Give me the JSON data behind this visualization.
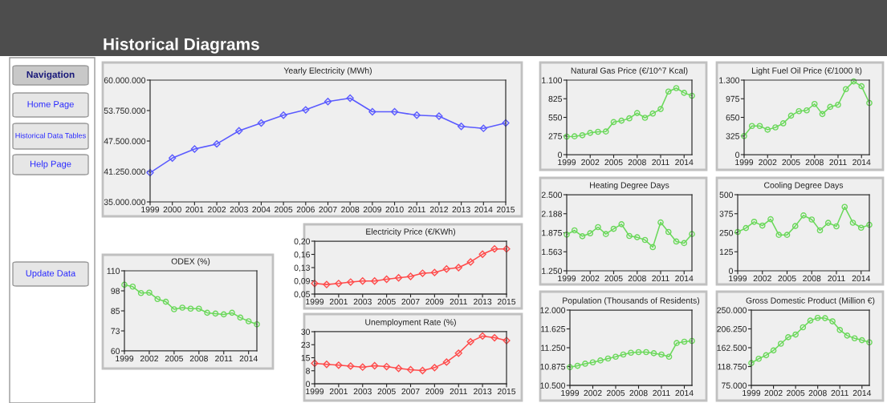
{
  "chart_data": [
    {
      "type": "other",
      "title": "Historical Diagrams",
      "annotations": [
        "Navigation",
        "Home Page",
        "Historical Data Tables",
        "Help Page",
        "Update Data"
      ]
    },
    {
      "type": "line",
      "title": "Yearly Electricity (MWh)",
      "x": [
        1999,
        2000,
        2001,
        2002,
        2003,
        2004,
        2005,
        2006,
        2007,
        2008,
        2009,
        2010,
        2011,
        2012,
        2013,
        2014,
        2015
      ],
      "color": "#5a5aff",
      "marker": "diamond",
      "values": [
        41000000,
        44000000,
        45850000,
        46900000,
        49600000,
        51200000,
        52800000,
        53900000,
        55600000,
        56300000,
        53500000,
        53500000,
        52800000,
        52600000,
        50500000,
        50100000,
        51200000
      ],
      "xlim": [
        1999,
        2015
      ],
      "xticks": [
        1999,
        2000,
        2001,
        2002,
        2003,
        2004,
        2005,
        2006,
        2007,
        2008,
        2009,
        2010,
        2011,
        2012,
        2013,
        2014,
        2015
      ],
      "ylim": [
        35000000,
        60000000
      ],
      "yticks": [
        {
          "value": 35000000,
          "label": "35.000.000"
        },
        {
          "value": 41250000,
          "label": "41.250.000"
        },
        {
          "value": 47500000,
          "label": "47.500.000"
        },
        {
          "value": 53750000,
          "label": "53.750.000"
        },
        {
          "value": 60000000,
          "label": "60.000.000"
        }
      ]
    },
    {
      "type": "line",
      "title": "ODEX (%)",
      "x": [
        1999,
        2000,
        2001,
        2002,
        2003,
        2004,
        2005,
        2006,
        2007,
        2008,
        2009,
        2010,
        2011,
        2012,
        2013,
        2014,
        2015
      ],
      "color": "#6ad85a",
      "marker": "circle",
      "values": [
        101.3,
        100.1,
        96.1,
        96.4,
        92.4,
        90.7,
        86.0,
        87.0,
        86.4,
        86.4,
        83.8,
        83.3,
        82.8,
        83.8,
        80.8,
        78.5,
        76.6
      ],
      "xlim": [
        1999,
        2015
      ],
      "xticks": [
        1999,
        2002,
        2005,
        2008,
        2011,
        2014
      ],
      "ylim": [
        60,
        110
      ],
      "yticks": [
        60,
        {
          "value": 72.5,
          "label": "73"
        },
        85,
        {
          "value": 97.5,
          "label": "98"
        },
        110
      ]
    },
    {
      "type": "line",
      "title": "Electricity Price (€/KWh)",
      "x": [
        1999,
        2000,
        2001,
        2002,
        2003,
        2004,
        2005,
        2006,
        2007,
        2008,
        2009,
        2010,
        2011,
        2012,
        2013,
        2014,
        2015
      ],
      "color": "#ff4a4a",
      "marker": "diamond",
      "values": [
        0.08,
        0.077,
        0.08,
        0.084,
        0.087,
        0.087,
        0.092,
        0.096,
        0.1,
        0.109,
        0.111,
        0.121,
        0.125,
        0.141,
        0.163,
        0.178,
        0.178
      ],
      "xlim": [
        1999,
        2015
      ],
      "xticks": [
        1999,
        2001,
        2003,
        2005,
        2007,
        2009,
        2011,
        2013,
        2015
      ],
      "ylim": [
        0.05,
        0.2
      ],
      "yticks": [
        {
          "value": 0.05,
          "label": "0,05"
        },
        {
          "value": 0.0875,
          "label": "0,09"
        },
        {
          "value": 0.125,
          "label": "0,13"
        },
        {
          "value": 0.1625,
          "label": "0,16"
        },
        {
          "value": 0.2,
          "label": "0,20"
        }
      ]
    },
    {
      "type": "line",
      "title": "Unemployment Rate (%)",
      "x": [
        1999,
        2000,
        2001,
        2002,
        2003,
        2004,
        2005,
        2006,
        2007,
        2008,
        2009,
        2010,
        2011,
        2012,
        2013,
        2014,
        2015
      ],
      "color": "#ff4a4a",
      "marker": "diamond",
      "values": [
        11.8,
        11.2,
        10.7,
        10.2,
        9.6,
        10.4,
        9.9,
        8.9,
        8.1,
        7.6,
        9.3,
        12.5,
        17.6,
        24.2,
        27.5,
        26.5,
        24.9
      ],
      "xlim": [
        1999,
        2015
      ],
      "xticks": [
        1999,
        2001,
        2003,
        2005,
        2007,
        2009,
        2011,
        2013,
        2015
      ],
      "ylim": [
        0,
        30
      ],
      "yticks": [
        0,
        {
          "value": 7.5,
          "label": "8"
        },
        15,
        {
          "value": 22.5,
          "label": "23"
        },
        30
      ]
    },
    {
      "type": "line",
      "title": "Natural Gas Price (€/10^7 Kcal)",
      "x": [
        1999,
        2000,
        2001,
        2002,
        2003,
        2004,
        2005,
        2006,
        2007,
        2008,
        2009,
        2010,
        2011,
        2012,
        2013,
        2014,
        2015
      ],
      "color": "#6ad85a",
      "marker": "circle",
      "values": [
        266,
        270,
        286,
        321,
        337,
        341,
        481,
        501,
        536,
        614,
        544,
        607,
        673,
        932,
        982,
        912,
        869
      ],
      "xlim": [
        1999,
        2015
      ],
      "xticks": [
        1999,
        2002,
        2005,
        2008,
        2011,
        2014
      ],
      "ylim": [
        0,
        1100
      ],
      "yticks": [
        0,
        275,
        550,
        825,
        {
          "value": 1100,
          "label": "1.100"
        }
      ]
    },
    {
      "type": "line",
      "title": "Light Fuel Oil Price (€/1000 lt)",
      "x": [
        1999,
        2000,
        2001,
        2002,
        2003,
        2004,
        2005,
        2006,
        2007,
        2008,
        2009,
        2010,
        2011,
        2012,
        2013,
        2014,
        2015
      ],
      "color": "#6ad85a",
      "marker": "circle",
      "values": [
        324,
        500,
        500,
        435,
        476,
        546,
        680,
        759,
        772,
        884,
        708,
        833,
        870,
        1142,
        1277,
        1193,
        902
      ],
      "xlim": [
        1999,
        2015
      ],
      "xticks": [
        1999,
        2002,
        2005,
        2008,
        2011,
        2014
      ],
      "ylim": [
        0,
        1300
      ],
      "yticks": [
        0,
        325,
        650,
        975,
        {
          "value": 1300,
          "label": "1.300"
        }
      ]
    },
    {
      "type": "line",
      "title": "Heating Degree Days",
      "x": [
        1999,
        2000,
        2001,
        2002,
        2003,
        2004,
        2005,
        2006,
        2007,
        2008,
        2009,
        2010,
        2011,
        2012,
        2013,
        2014,
        2015
      ],
      "color": "#6ad85a",
      "marker": "circle",
      "values": [
        1844,
        1914,
        1818,
        1866,
        1967,
        1853,
        1940,
        2015,
        1823,
        1801,
        1757,
        1639,
        2045,
        1888,
        1731,
        1705,
        1853
      ],
      "xlim": [
        1999,
        2015
      ],
      "xticks": [
        1999,
        2002,
        2005,
        2008,
        2011,
        2014
      ],
      "ylim": [
        1250,
        2500
      ],
      "yticks": [
        {
          "value": 1250,
          "label": "1.250"
        },
        {
          "value": 1562.5,
          "label": "1.563"
        },
        {
          "value": 1875,
          "label": "1.875"
        },
        {
          "value": 2187.5,
          "label": "2.188"
        },
        {
          "value": 2500,
          "label": "2.500"
        }
      ]
    },
    {
      "type": "line",
      "title": "Cooling Degree Days",
      "x": [
        1999,
        2000,
        2001,
        2002,
        2003,
        2004,
        2005,
        2006,
        2007,
        2008,
        2009,
        2010,
        2011,
        2012,
        2013,
        2014,
        2015
      ],
      "color": "#6ad85a",
      "marker": "circle",
      "values": [
        255,
        281,
        322,
        297,
        339,
        236,
        236,
        294,
        364,
        337,
        266,
        315,
        292,
        420,
        316,
        283,
        302
      ],
      "xlim": [
        1999,
        2015
      ],
      "xticks": [
        1999,
        2002,
        2005,
        2008,
        2011,
        2014
      ],
      "ylim": [
        0,
        500
      ],
      "yticks": [
        0,
        125,
        250,
        375,
        500
      ]
    },
    {
      "type": "line",
      "title": "Population (Thousands of Residents)",
      "x": [
        1999,
        2000,
        2001,
        2002,
        2003,
        2004,
        2005,
        2006,
        2007,
        2008,
        2009,
        2010,
        2011,
        2012,
        2013,
        2014,
        2015
      ],
      "color": "#6ad85a",
      "marker": "circle",
      "values": [
        10863,
        10890,
        10932,
        10959,
        10996,
        11034,
        11071,
        11114,
        11151,
        11162,
        11162,
        11140,
        11114,
        11071,
        11343,
        11370,
        11386
      ],
      "xlim": [
        1999,
        2015
      ],
      "xticks": [
        1999,
        2002,
        2005,
        2008,
        2011,
        2014
      ],
      "ylim": [
        10500,
        12000
      ],
      "yticks": [
        {
          "value": 10500,
          "label": "10.500"
        },
        {
          "value": 10875,
          "label": "10.875"
        },
        {
          "value": 11250,
          "label": "11.250"
        },
        {
          "value": 11625,
          "label": "11.625"
        },
        {
          "value": 12000,
          "label": "12.000"
        }
      ]
    },
    {
      "type": "line",
      "title": "Gross Domestic Product (Million €)",
      "x": [
        1999,
        2000,
        2001,
        2002,
        2003,
        2004,
        2005,
        2006,
        2007,
        2008,
        2009,
        2010,
        2011,
        2012,
        2013,
        2014,
        2015
      ],
      "color": "#6ad85a",
      "marker": "circle",
      "values": [
        126900,
        136900,
        145000,
        156200,
        171900,
        186900,
        193100,
        210000,
        225600,
        231900,
        231200,
        223800,
        203800,
        190600,
        184400,
        180000,
        175000
      ],
      "xlim": [
        1999,
        2015
      ],
      "xticks": [
        1999,
        2002,
        2005,
        2008,
        2011,
        2014
      ],
      "ylim": [
        75000,
        250000
      ],
      "yticks": [
        {
          "value": 75000,
          "label": "75.000"
        },
        {
          "value": 118750,
          "label": "118.750"
        },
        {
          "value": 162500,
          "label": "162.500"
        },
        {
          "value": 206250,
          "label": "206.250"
        },
        {
          "value": 250000,
          "label": "250.000"
        }
      ]
    }
  ]
}
